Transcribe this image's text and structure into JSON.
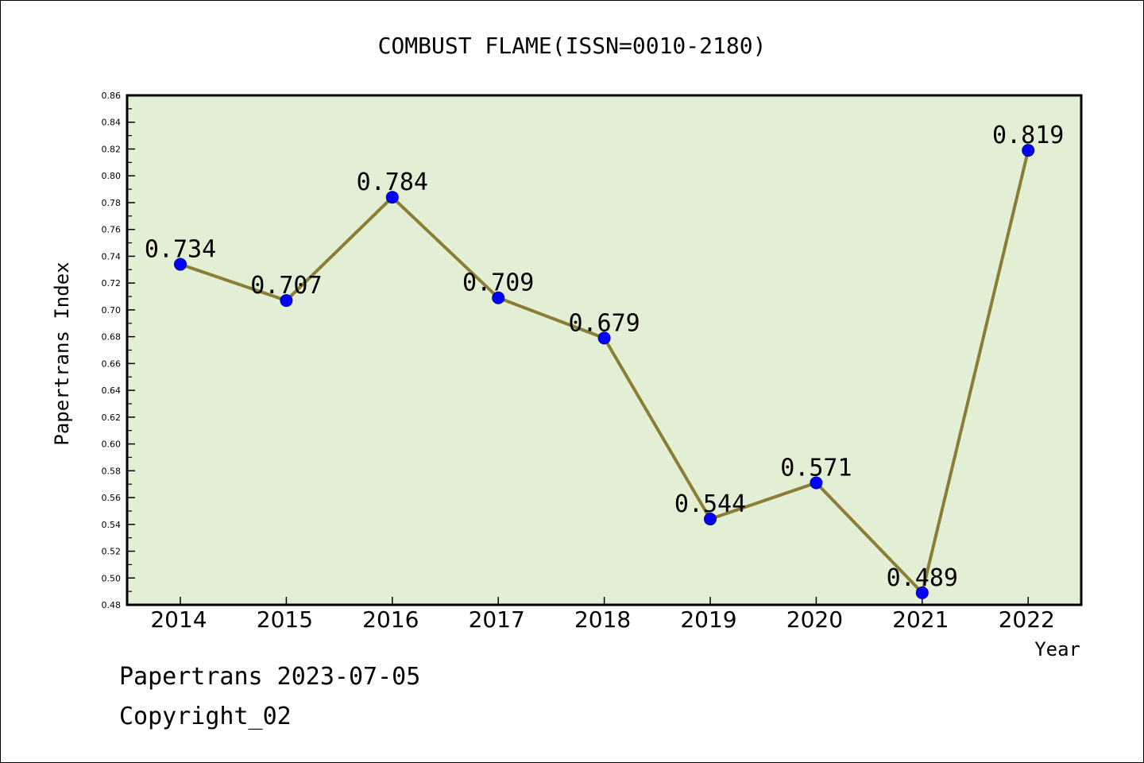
{
  "chart_data": {
    "type": "line",
    "title": "COMBUST FLAME(ISSN=0010-2180)",
    "xlabel": "Year",
    "ylabel": "Papertrans Index",
    "categories": [
      "2014",
      "2015",
      "2016",
      "2017",
      "2018",
      "2019",
      "2020",
      "2021",
      "2022"
    ],
    "series": [
      {
        "values": [
          0.734,
          0.707,
          0.784,
          0.709,
          0.679,
          0.544,
          0.571,
          0.489,
          0.819
        ],
        "labels": [
          "0.734",
          "0.707",
          "0.784",
          "0.709",
          "0.679",
          "0.544",
          "0.571",
          "0.489",
          "0.819"
        ]
      }
    ],
    "ylim": [
      0.48,
      0.86
    ],
    "yticks": [
      "0.48",
      "0.50",
      "0.52",
      "0.54",
      "0.56",
      "0.58",
      "0.60",
      "0.62",
      "0.64",
      "0.66",
      "0.68",
      "0.70",
      "0.72",
      "0.74",
      "0.76",
      "0.78",
      "0.80",
      "0.82",
      "0.84",
      "0.86"
    ],
    "grid": false,
    "legend": "none",
    "colors": {
      "plot_background": "#e2efd5",
      "line": "#8b7d35",
      "marker": "#0000ff"
    }
  },
  "footer": {
    "line1": "Papertrans 2023-07-05",
    "line2": "Copyright_02"
  }
}
